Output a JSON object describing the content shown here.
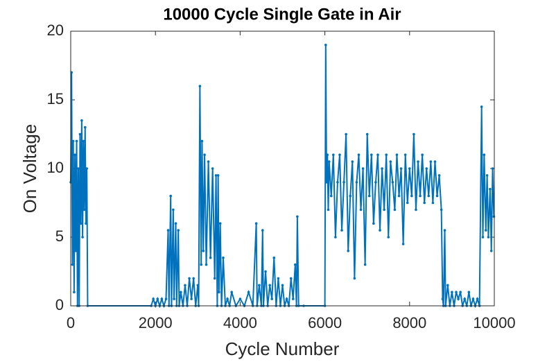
{
  "chart_data": {
    "type": "line",
    "title": "10000 Cycle Single Gate in Air",
    "x_label": "Cycle Number",
    "y_label": "On Voltage",
    "xlim": [
      0,
      10000
    ],
    "ylim": [
      0,
      20
    ],
    "xticks": [
      0,
      2000,
      4000,
      6000,
      8000,
      10000
    ],
    "yticks": [
      0,
      5,
      10,
      15,
      20
    ],
    "grid": false,
    "series": [
      {
        "color": "#0072bd",
        "x": [
          0,
          20,
          40,
          60,
          80,
          100,
          120,
          140,
          160,
          180,
          200,
          220,
          240,
          260,
          280,
          300,
          320,
          340,
          360,
          380,
          400,
          1900,
          1950,
          2000,
          2050,
          2100,
          2150,
          2200,
          2250,
          2300,
          2320,
          2360,
          2380,
          2420,
          2440,
          2480,
          2500,
          2540,
          2560,
          2600,
          2650,
          2700,
          2750,
          2800,
          2850,
          2900,
          2950,
          3000,
          3020,
          3050,
          3080,
          3100,
          3130,
          3160,
          3200,
          3250,
          3300,
          3350,
          3400,
          3430,
          3460,
          3480,
          3500,
          3530,
          3560,
          3600,
          3650,
          3700,
          3750,
          3800,
          3900,
          4000,
          4100,
          4200,
          4300,
          4380,
          4400,
          4450,
          4500,
          4530,
          4550,
          4600,
          4650,
          4700,
          4750,
          4800,
          4850,
          4900,
          4950,
          5000,
          5050,
          5100,
          5150,
          5200,
          5250,
          5300,
          5330,
          5350,
          5380,
          5500,
          6000,
          6020,
          6040,
          6060,
          6080,
          6100,
          6150,
          6200,
          6250,
          6300,
          6350,
          6400,
          6450,
          6500,
          6550,
          6600,
          6650,
          6700,
          6750,
          6800,
          6850,
          6900,
          6950,
          7000,
          7050,
          7100,
          7150,
          7200,
          7250,
          7300,
          7350,
          7400,
          7450,
          7500,
          7550,
          7600,
          7650,
          7700,
          7750,
          7800,
          7850,
          7900,
          7950,
          8000,
          8050,
          8100,
          8150,
          8200,
          8250,
          8300,
          8350,
          8400,
          8450,
          8500,
          8550,
          8600,
          8650,
          8700,
          8750,
          8780,
          8800,
          8830,
          8850,
          8900,
          8950,
          9000,
          9050,
          9100,
          9150,
          9200,
          9250,
          9300,
          9350,
          9400,
          9450,
          9500,
          9550,
          9600,
          9650,
          9700,
          9730,
          9760,
          9800,
          9830,
          9860,
          9900,
          9930,
          9960,
          9990
        ],
        "values": [
          9,
          17,
          3,
          12,
          1,
          11,
          4,
          12,
          0,
          10,
          0,
          12.5,
          6,
          13.5,
          5,
          12,
          7,
          13,
          6,
          10,
          0,
          0,
          0.5,
          0,
          0.5,
          0,
          0.5,
          0,
          0.5,
          5.5,
          0,
          8,
          0,
          7,
          0.5,
          6,
          0,
          5.5,
          0,
          1,
          0,
          1.5,
          0,
          2,
          0.5,
          2,
          0,
          1.5,
          0,
          16,
          3,
          12,
          4,
          11,
          3,
          10.5,
          3.5,
          10,
          2,
          9.5,
          0,
          9.5,
          1,
          6,
          0,
          3.5,
          0,
          0.5,
          0,
          1,
          0,
          0.5,
          0,
          1,
          0,
          6,
          0,
          1.5,
          0,
          5.5,
          0,
          2.5,
          0,
          1.5,
          0.5,
          3.5,
          0,
          2,
          0,
          1.5,
          0,
          0.5,
          0,
          2,
          0.5,
          3,
          0,
          6.5,
          0,
          0,
          0,
          19,
          9,
          11,
          7,
          10.5,
          8,
          11,
          5,
          9,
          11,
          5.5,
          9,
          12.5,
          4,
          8,
          10.5,
          2,
          9,
          11,
          7,
          10,
          3,
          12.5,
          8,
          11,
          6,
          9,
          11,
          5.5,
          10,
          7,
          11,
          5,
          10.5,
          9,
          7,
          11,
          8,
          10,
          4.5,
          11,
          7.5,
          10,
          8,
          12.5,
          7,
          10.5,
          8,
          11,
          7.5,
          10,
          8,
          10.5,
          7.5,
          10.5,
          8,
          9.5,
          7,
          0.5,
          0,
          5.5,
          0,
          1.5,
          0,
          1,
          0,
          1,
          0.5,
          1,
          0,
          0.5,
          0,
          1,
          0,
          0.5,
          0,
          0.5,
          0,
          14.5,
          5,
          11,
          5.5,
          9.5,
          5,
          8.5,
          4,
          10,
          6.5
        ]
      }
    ]
  }
}
